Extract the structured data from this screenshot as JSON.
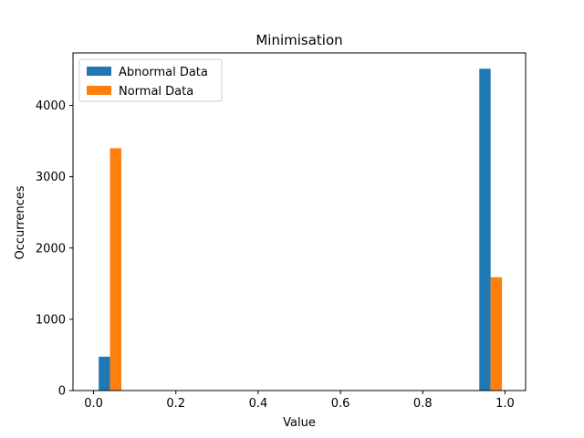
{
  "chart_data": {
    "type": "bar",
    "title": "Minimisation",
    "xlabel": "Value",
    "ylabel": "Occurrences",
    "xlim": [
      -0.05,
      1.05
    ],
    "ylim": [
      0,
      4737
    ],
    "xticks": [
      0.0,
      0.2,
      0.4,
      0.6,
      0.8,
      1.0
    ],
    "xtick_labels": [
      "0.0",
      "0.2",
      "0.4",
      "0.6",
      "0.8",
      "1.0"
    ],
    "yticks": [
      0,
      1000,
      2000,
      3000,
      4000
    ],
    "ytick_labels": [
      "0",
      "1000",
      "2000",
      "3000",
      "4000"
    ],
    "grid": false,
    "legend_position": "top-left",
    "series": [
      {
        "name": "Abnormal Data",
        "color": "#1f77b4",
        "bars": [
          {
            "x0": 0.0125,
            "x1": 0.04,
            "value": 475
          },
          {
            "x0": 0.9375,
            "x1": 0.965,
            "value": 4515
          }
        ]
      },
      {
        "name": "Normal Data",
        "color": "#ff7f0e",
        "bars": [
          {
            "x0": 0.04,
            "x1": 0.0675,
            "value": 3400
          },
          {
            "x0": 0.965,
            "x1": 0.9925,
            "value": 1590
          }
        ]
      }
    ]
  }
}
